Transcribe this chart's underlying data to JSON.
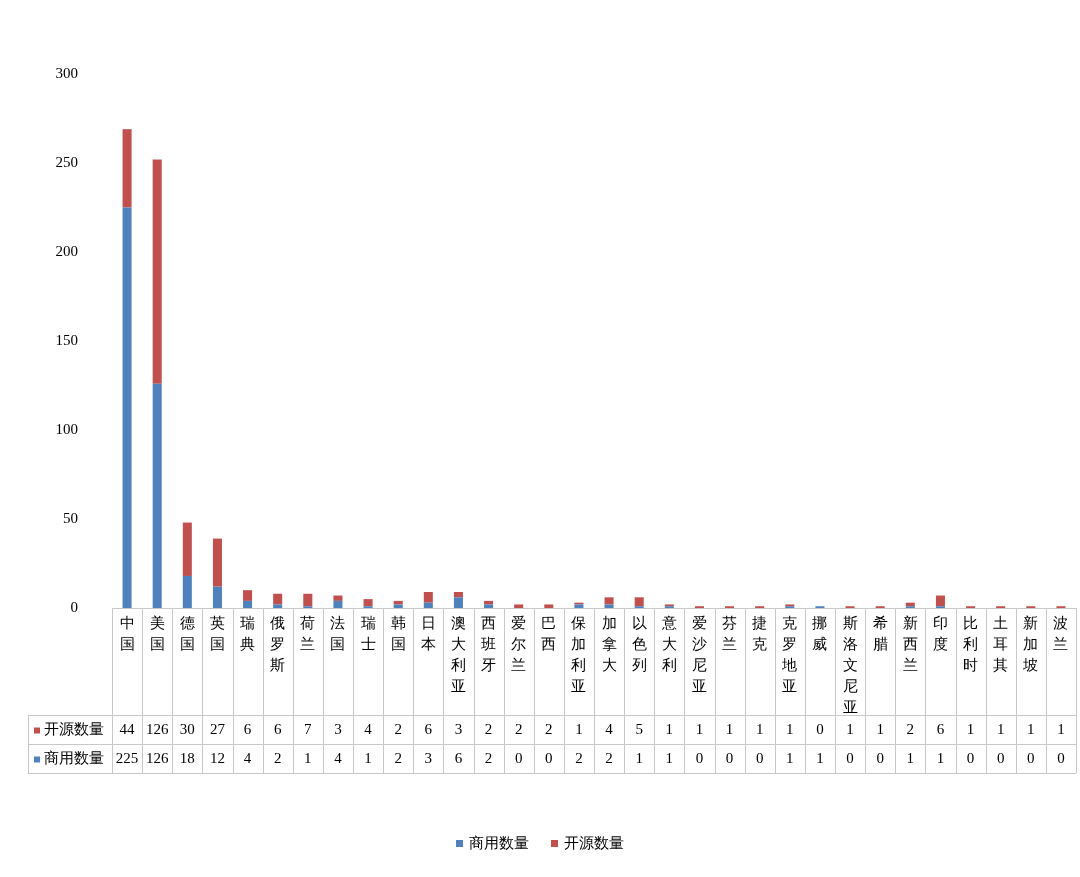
{
  "chart_data": {
    "type": "bar",
    "stacked": true,
    "data_labels": true,
    "legend": "bottom",
    "grid": false,
    "categories": [
      "中国",
      "美国",
      "德国",
      "英国",
      "瑞典",
      "俄罗斯",
      "荷兰",
      "法国",
      "瑞士",
      "韩国",
      "日本",
      "澳大利亚",
      "西班牙",
      "爱尔兰",
      "巴西",
      "保加利亚",
      "加拿大",
      "以色列",
      "意大利",
      "爱沙尼亚",
      "芬兰",
      "捷克",
      "克罗地亚",
      "挪威",
      "斯洛文尼亚",
      "希腊",
      "新西兰",
      "印度",
      "比利时",
      "土耳其",
      "新加坡",
      "波兰"
    ],
    "ylim": [
      0,
      300
    ],
    "yticks": [
      0,
      50,
      100,
      150,
      200,
      250,
      300
    ],
    "series": [
      {
        "name": "商用数量",
        "color": "#4f81bd",
        "values": [
          225,
          126,
          18,
          12,
          4,
          2,
          1,
          4,
          1,
          2,
          3,
          6,
          2,
          0,
          0,
          2,
          2,
          1,
          1,
          0,
          0,
          0,
          1,
          1,
          0,
          0,
          1,
          1,
          0,
          0,
          0,
          0
        ]
      },
      {
        "name": "开源数量",
        "color": "#c0504d",
        "values": [
          44,
          126,
          30,
          27,
          6,
          6,
          7,
          3,
          4,
          2,
          6,
          3,
          2,
          2,
          2,
          1,
          4,
          5,
          1,
          1,
          1,
          1,
          1,
          0,
          1,
          1,
          2,
          6,
          1,
          1,
          1,
          1
        ]
      }
    ]
  }
}
